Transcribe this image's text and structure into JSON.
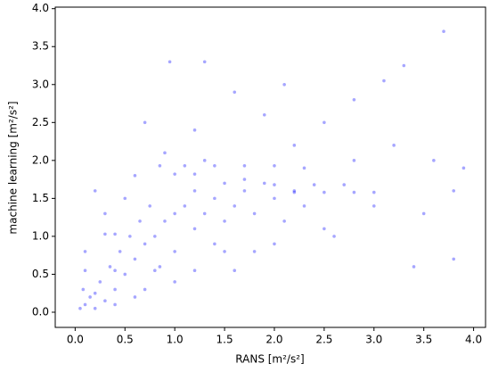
{
  "chart_data": {
    "type": "scatter",
    "xlabel": "RANS [m²/s²]",
    "ylabel": "machine learning [m²/s²]",
    "color": "#0000ff",
    "xlim": [
      -0.2,
      4.12
    ],
    "ylim": [
      -0.2,
      4.02
    ],
    "xticks": [
      {
        "value": 0,
        "label": "0.0"
      },
      {
        "value": 0.5,
        "label": "0.5"
      },
      {
        "value": 1,
        "label": "1.0"
      },
      {
        "value": 1.5,
        "label": "1.5"
      },
      {
        "value": 2,
        "label": "2.0"
      },
      {
        "value": 2.5,
        "label": "2.5"
      },
      {
        "value": 3,
        "label": "3.0"
      },
      {
        "value": 3.5,
        "label": "3.5"
      },
      {
        "value": 4,
        "label": "4.0"
      }
    ],
    "yticks": [
      {
        "value": 0,
        "label": "0.0"
      },
      {
        "value": 0.5,
        "label": "0.5"
      },
      {
        "value": 1,
        "label": "1.0"
      },
      {
        "value": 1.5,
        "label": "1.5"
      },
      {
        "value": 2,
        "label": "2.0"
      },
      {
        "value": 2.5,
        "label": "2.5"
      },
      {
        "value": 3,
        "label": "3.0"
      },
      {
        "value": 3.5,
        "label": "3.5"
      },
      {
        "value": 4,
        "label": "4.0"
      }
    ],
    "x": [
      0.05,
      0.1,
      0.08,
      0.15,
      0.2,
      0.3,
      0.25,
      0.4,
      0.35,
      0.5,
      0.45,
      0.6,
      0.55,
      0.7,
      0.65,
      0.8,
      0.75,
      0.9,
      0.85,
      1.0,
      1.0,
      1.1,
      1.2,
      1.2,
      1.3,
      1.4,
      1.5,
      1.5,
      1.6,
      1.7,
      1.8,
      1.9,
      2.0,
      2.1,
      2.2,
      2.3,
      0.3,
      0.4,
      0.1,
      0.4,
      0.8,
      1.2,
      1.6,
      0.85,
      1.1,
      1.4,
      1.7,
      2.0,
      2.2,
      2.5,
      2.8,
      3.0,
      2.0,
      2.4,
      2.7,
      1.0,
      1.2,
      1.7,
      2.2,
      2.5,
      2.8,
      3.1,
      3.3,
      0.5,
      0.6,
      0.9,
      1.2,
      1.6,
      0.3,
      0.2,
      0.1,
      0.7,
      1.0,
      1.5,
      2.0,
      2.5,
      3.0,
      2.8,
      3.5,
      3.8,
      3.7,
      3.8,
      3.4,
      3.6,
      2.6,
      1.3,
      0.7,
      1.9,
      2.3,
      1.8,
      0.4,
      0.6,
      1.4,
      0.2,
      3.2,
      2.1,
      1.3,
      0.95,
      3.9
    ],
    "y": [
      0.05,
      0.1,
      0.3,
      0.2,
      0.05,
      0.15,
      0.4,
      0.3,
      0.6,
      0.5,
      0.8,
      0.7,
      1.0,
      0.9,
      1.2,
      1.0,
      1.4,
      1.2,
      0.6,
      1.3,
      0.8,
      1.4,
      1.1,
      1.6,
      1.3,
      1.5,
      1.2,
      1.7,
      1.4,
      1.6,
      1.3,
      1.7,
      1.5,
      1.2,
      1.6,
      1.4,
      1.03,
      1.03,
      0.55,
      0.55,
      0.55,
      0.55,
      0.55,
      1.93,
      1.93,
      1.93,
      1.93,
      1.93,
      1.58,
      1.58,
      1.58,
      1.58,
      1.68,
      1.68,
      1.68,
      1.82,
      1.82,
      1.75,
      2.2,
      2.5,
      2.8,
      3.05,
      3.25,
      1.5,
      1.8,
      2.1,
      2.4,
      2.9,
      1.3,
      1.6,
      0.8,
      0.3,
      0.4,
      0.8,
      0.9,
      1.1,
      1.4,
      2.0,
      1.3,
      1.6,
      3.7,
      0.7,
      0.6,
      2.0,
      1.0,
      2.0,
      2.5,
      2.6,
      1.9,
      0.8,
      0.1,
      0.2,
      0.9,
      0.25,
      2.2,
      3.0,
      3.3,
      3.3,
      1.9
    ]
  }
}
